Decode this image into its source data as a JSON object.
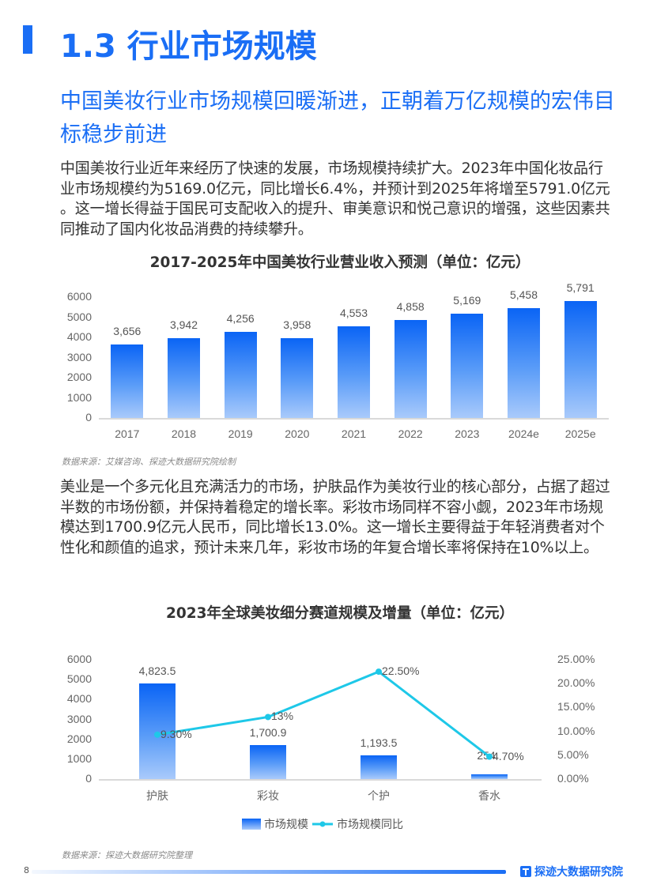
{
  "header": {
    "title": "1.3 行业市场规模",
    "subtitle": "中国美妆行业市场规模回暖渐进，正朝着万亿规模的宏伟目标稳步前进"
  },
  "paragraphs": [
    "中国美妆行业近年来经历了快速的发展，市场规模持续扩大。2023年中国化妆品行业市场规模约为5169.0亿元，同比增长6.4%，并预计到2025年将增至5791.0亿元 。这一增长得益于国民可支配收入的提升、审美意识和悦己意识的增强，这些因素共同推动了国内化妆品消费的持续攀升。",
    "美业是一个多元化且充满活力的市场，护肤品作为美妆行业的核心部分，占据了超过半数的市场份额，并保持着稳定的增长率。彩妆市场同样不容小觑，2023年市场规模达到1700.9亿元人民币，同比增长13.0%。这一增长主要得益于年轻消费者对个性化和颜值的追求，预计未来几年，彩妆市场的年复合增长率将保持在10%以上。"
  ],
  "chart1": {
    "title": "2017-2025年中国美妆行业营业收入预测（单位：亿元）",
    "source": "数据来源：艾媒咨询、探迹大数据研究院绘制",
    "y_ticks": [
      "0",
      "1000",
      "2000",
      "3000",
      "4000",
      "5000",
      "6000"
    ],
    "categories": [
      "2017",
      "2018",
      "2019",
      "2020",
      "2021",
      "2022",
      "2023",
      "2024e",
      "2025e"
    ],
    "value_labels": [
      "3,656",
      "3,942",
      "4,256",
      "3,958",
      "4,553",
      "4,858",
      "5,169",
      "5,458",
      "5,791"
    ]
  },
  "chart2": {
    "title": "2023年全球美妆细分赛道规模及增量（单位：亿元）",
    "source": "数据来源：探迹大数据研究院整理",
    "y_ticks_left": [
      "0",
      "1000",
      "2000",
      "3000",
      "4000",
      "5000",
      "6000"
    ],
    "y_ticks_right": [
      "0.00%",
      "5.00%",
      "10.00%",
      "15.00%",
      "20.00%",
      "25.00%"
    ],
    "categories": [
      "护肤",
      "彩妆",
      "个护",
      "香水"
    ],
    "bar_labels": [
      "4,823.5",
      "1,700.9",
      "1,193.5",
      "254"
    ],
    "line_labels": [
      "9.30%",
      "13%",
      "22.50%",
      "4.70%"
    ],
    "legend": [
      "市场规模",
      "市场规模同比"
    ]
  },
  "footer": {
    "page_number": "8",
    "brand": "探迹大数据研究院"
  },
  "colors": {
    "accent": "#1a6ef5",
    "bar_top": "#0a64f5",
    "bar_bottom": "#a9cafb",
    "line": "#1ec8e8"
  },
  "chart_data": [
    {
      "type": "bar",
      "title": "2017-2025年中国美妆行业营业收入预测（单位：亿元）",
      "categories": [
        "2017",
        "2018",
        "2019",
        "2020",
        "2021",
        "2022",
        "2023",
        "2024e",
        "2025e"
      ],
      "values": [
        3656,
        3942,
        4256,
        3958,
        4553,
        4858,
        5169,
        5458,
        5791
      ],
      "xlabel": "",
      "ylabel": "",
      "ylim": [
        0,
        6000
      ],
      "y_ticks": [
        0,
        1000,
        2000,
        3000,
        4000,
        5000,
        6000
      ],
      "grid": false,
      "source": "数据来源：艾媒咨询、探迹大数据研究院绘制"
    },
    {
      "type": "bar",
      "title": "2023年全球美妆细分赛道规模及增量（单位：亿元）",
      "categories": [
        "护肤",
        "彩妆",
        "个护",
        "香水"
      ],
      "series": [
        {
          "name": "市场规模",
          "type": "bar",
          "axis": "left",
          "values": [
            4823.5,
            1700.9,
            1193.5,
            254
          ]
        },
        {
          "name": "市场规模同比",
          "type": "line",
          "axis": "right",
          "values": [
            9.3,
            13.0,
            22.5,
            4.7
          ],
          "unit": "%"
        }
      ],
      "ylim": [
        0,
        6000
      ],
      "y2lim": [
        0,
        25
      ],
      "y_ticks": [
        0,
        1000,
        2000,
        3000,
        4000,
        5000,
        6000
      ],
      "y2_ticks": [
        "0.00%",
        "5.00%",
        "10.00%",
        "15.00%",
        "20.00%",
        "25.00%"
      ],
      "legend_position": "bottom",
      "grid": false,
      "source": "数据来源：探迹大数据研究院整理"
    }
  ]
}
